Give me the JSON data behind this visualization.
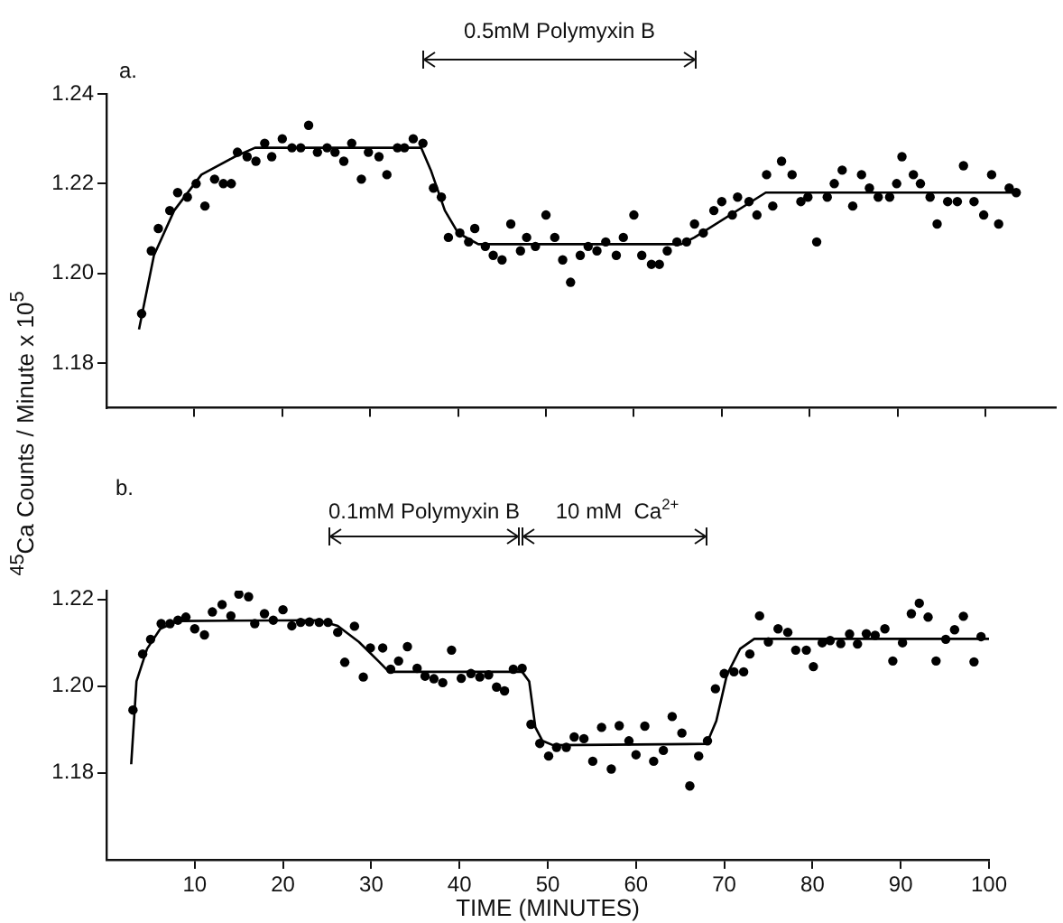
{
  "chart_data": [
    {
      "type": "scatter",
      "ylabel": "$^{45}$Ca  Counts / Minute x 10$^{5}$",
      "annotations": [
        "a.",
        "0.5mM Polymyxin B"
      ],
      "tick_labels": "y",
      "grid": false,
      "legend": false,
      "xlim": [
        0,
        108
      ],
      "xticks": [
        10,
        20,
        30,
        40,
        50,
        60,
        70,
        80,
        90,
        100
      ],
      "ylim": [
        1.17,
        1.24
      ],
      "yticks": [
        {
          "value": 1.18,
          "label": "1.18"
        },
        {
          "value": 1.2,
          "label": "1.20"
        },
        {
          "value": 1.22,
          "label": "1.22"
        },
        {
          "value": 1.24,
          "label": "1.24"
        }
      ],
      "series": [
        {
          "type": "scatter",
          "marker": "circle",
          "color": "#000000",
          "x": [
            4.0,
            5.1,
            5.9,
            7.2,
            8.1,
            9.2,
            10.2,
            11.2,
            12.3,
            13.3,
            14.2,
            14.9,
            16.0,
            17.0,
            18.0,
            18.8,
            20.0,
            21.1,
            22.1,
            23.0,
            24.0,
            25.1,
            26.0,
            27.0,
            27.9,
            29.0,
            29.8,
            31.0,
            31.9,
            33.1,
            33.9,
            34.9,
            36.0,
            37.2,
            38.1,
            38.9,
            40.2,
            41.2,
            41.9,
            43.1,
            44.0,
            45.0,
            46.0,
            47.1,
            47.8,
            48.8,
            50.0,
            51.0,
            51.9,
            52.8,
            53.9,
            54.8,
            55.8,
            56.8,
            58.0,
            58.8,
            60.0,
            60.9,
            62.0,
            62.9,
            63.8,
            64.9,
            66.0,
            66.9,
            67.9,
            69.1,
            70.0,
            71.2,
            71.8,
            73.1,
            74.0,
            75.1,
            75.8,
            76.8,
            78.0,
            79.0,
            79.8,
            80.8,
            82.0,
            82.8,
            83.7,
            84.9,
            85.9,
            86.8,
            87.8,
            89.1,
            89.9,
            90.5,
            91.8,
            92.6,
            93.7,
            94.5,
            95.7,
            96.8,
            97.5,
            98.7,
            99.8,
            100.7,
            101.5,
            102.7,
            103.5
          ],
          "values": [
            1.191,
            1.205,
            1.21,
            1.214,
            1.218,
            1.217,
            1.22,
            1.215,
            1.221,
            1.22,
            1.22,
            1.227,
            1.226,
            1.225,
            1.229,
            1.226,
            1.23,
            1.228,
            1.228,
            1.233,
            1.227,
            1.228,
            1.227,
            1.225,
            1.229,
            1.221,
            1.227,
            1.226,
            1.222,
            1.228,
            1.228,
            1.23,
            1.229,
            1.219,
            1.217,
            1.208,
            1.209,
            1.207,
            1.21,
            1.206,
            1.204,
            1.203,
            1.211,
            1.205,
            1.208,
            1.206,
            1.213,
            1.208,
            1.203,
            1.198,
            1.204,
            1.206,
            1.205,
            1.207,
            1.204,
            1.208,
            1.213,
            1.204,
            1.202,
            1.202,
            1.205,
            1.207,
            1.207,
            1.211,
            1.209,
            1.214,
            1.216,
            1.213,
            1.217,
            1.216,
            1.213,
            1.222,
            1.215,
            1.225,
            1.222,
            1.216,
            1.217,
            1.207,
            1.217,
            1.22,
            1.223,
            1.215,
            1.222,
            1.219,
            1.217,
            1.217,
            1.22,
            1.226,
            1.222,
            1.22,
            1.217,
            1.211,
            1.216,
            1.216,
            1.224,
            1.216,
            1.213,
            1.222,
            1.211,
            1.219,
            1.218
          ]
        },
        {
          "type": "line",
          "marker": "none",
          "color": "#000000",
          "x": [
            3.7,
            5.4,
            7.7,
            10.8,
            14.6,
            16.9,
            35.8,
            36.9,
            38.5,
            40.0,
            42.3,
            65.4,
            66.9,
            75.0,
            103.1
          ],
          "values": [
            1.1875,
            1.204,
            1.214,
            1.222,
            1.226,
            1.228,
            1.228,
            1.223,
            1.214,
            1.209,
            1.2065,
            1.2065,
            1.208,
            1.218,
            1.218
          ]
        }
      ]
    },
    {
      "type": "scatter",
      "xlabel": "TIME (MINUTES)",
      "annotations": [
        "b.",
        "0.1mM Polymyxin B",
        "10 mM  Ca$^{2+}$"
      ],
      "grid": false,
      "legend": false,
      "xlim": [
        0,
        100
      ],
      "xticks": [
        10,
        20,
        30,
        40,
        50,
        60,
        70,
        80,
        90,
        100
      ],
      "ylim": [
        1.16,
        1.222
      ],
      "yticks": [
        {
          "value": 1.18,
          "label": "1.18"
        },
        {
          "value": 1.2,
          "label": "1.20"
        },
        {
          "value": 1.22,
          "label": "1.22"
        }
      ],
      "series": [
        {
          "type": "scatter",
          "marker": "circle",
          "color": "#000000",
          "x": [
            3.0,
            4.1,
            5.0,
            6.2,
            7.2,
            8.1,
            9.0,
            10.0,
            11.1,
            12.0,
            13.1,
            14.1,
            15.0,
            16.1,
            16.8,
            17.9,
            18.9,
            20.0,
            21.0,
            22.0,
            23.0,
            24.1,
            25.1,
            26.2,
            27.0,
            28.1,
            29.1,
            29.9,
            31.3,
            32.2,
            33.1,
            34.1,
            35.2,
            36.1,
            37.1,
            38.1,
            39.1,
            40.2,
            41.3,
            42.3,
            43.3,
            44.2,
            45.1,
            46.1,
            47.1,
            48.1,
            49.1,
            50.1,
            51.0,
            52.1,
            53.0,
            54.1,
            55.1,
            56.1,
            57.2,
            58.1,
            59.2,
            60.0,
            61.0,
            62.0,
            63.1,
            64.1,
            65.2,
            66.1,
            67.1,
            68.1,
            69.0,
            70.0,
            71.1,
            72.2,
            72.9,
            74.0,
            75.0,
            76.1,
            77.2,
            78.1,
            79.3,
            80.1,
            81.1,
            82.0,
            83.2,
            84.2,
            85.1,
            86.1,
            87.1,
            88.2,
            89.1,
            90.2,
            91.2,
            92.1,
            93.1,
            94.0,
            95.1,
            96.1,
            97.1,
            98.3,
            99.1
          ],
          "values": [
            1.1945,
            1.2074,
            1.2108,
            1.2144,
            1.2144,
            1.2152,
            1.2159,
            1.2132,
            1.2118,
            1.2171,
            1.2188,
            1.2162,
            1.2212,
            1.2206,
            1.2144,
            1.2167,
            1.2152,
            1.2176,
            1.2139,
            1.2147,
            1.2148,
            1.2147,
            1.2147,
            1.2124,
            1.2055,
            1.2138,
            1.2021,
            1.2088,
            1.2088,
            1.2039,
            1.2058,
            1.2091,
            1.2041,
            1.2023,
            1.2017,
            1.2008,
            1.2083,
            1.2018,
            1.2029,
            1.2021,
            1.2026,
            1.1998,
            1.1989,
            1.2039,
            1.2041,
            1.1912,
            1.1868,
            1.1839,
            1.1859,
            1.1859,
            1.1883,
            1.1879,
            1.1827,
            1.1905,
            1.1809,
            1.1909,
            1.1874,
            1.1842,
            1.1908,
            1.1827,
            1.1852,
            1.193,
            1.1892,
            1.177,
            1.1839,
            1.1874,
            1.1994,
            1.2029,
            1.2033,
            1.2033,
            1.2074,
            1.2162,
            1.2102,
            1.2132,
            1.2124,
            1.2083,
            1.2083,
            1.2045,
            1.21,
            1.2105,
            1.2098,
            1.212,
            1.2097,
            1.2121,
            1.2117,
            1.2132,
            1.2058,
            1.21,
            1.2167,
            1.2191,
            1.2159,
            1.2058,
            1.2108,
            1.213,
            1.2161,
            1.2056,
            1.2114
          ]
        },
        {
          "type": "line",
          "marker": "none",
          "color": "#000000",
          "x": [
            2.8,
            3.4,
            4.6,
            6.1,
            8.1,
            24.0,
            26.2,
            28.6,
            30.9,
            32.0,
            47.1,
            47.9,
            48.6,
            49.4,
            50.6,
            68.0,
            69.1,
            70.3,
            71.8,
            73.4,
            100.0
          ],
          "values": [
            1.182,
            1.2011,
            1.2086,
            1.2132,
            1.215,
            1.2152,
            1.2139,
            1.2102,
            1.2056,
            1.2033,
            1.2033,
            1.2011,
            1.1905,
            1.1874,
            1.1864,
            1.1867,
            1.192,
            1.2026,
            1.2086,
            1.2109,
            1.2109
          ]
        }
      ]
    }
  ]
}
